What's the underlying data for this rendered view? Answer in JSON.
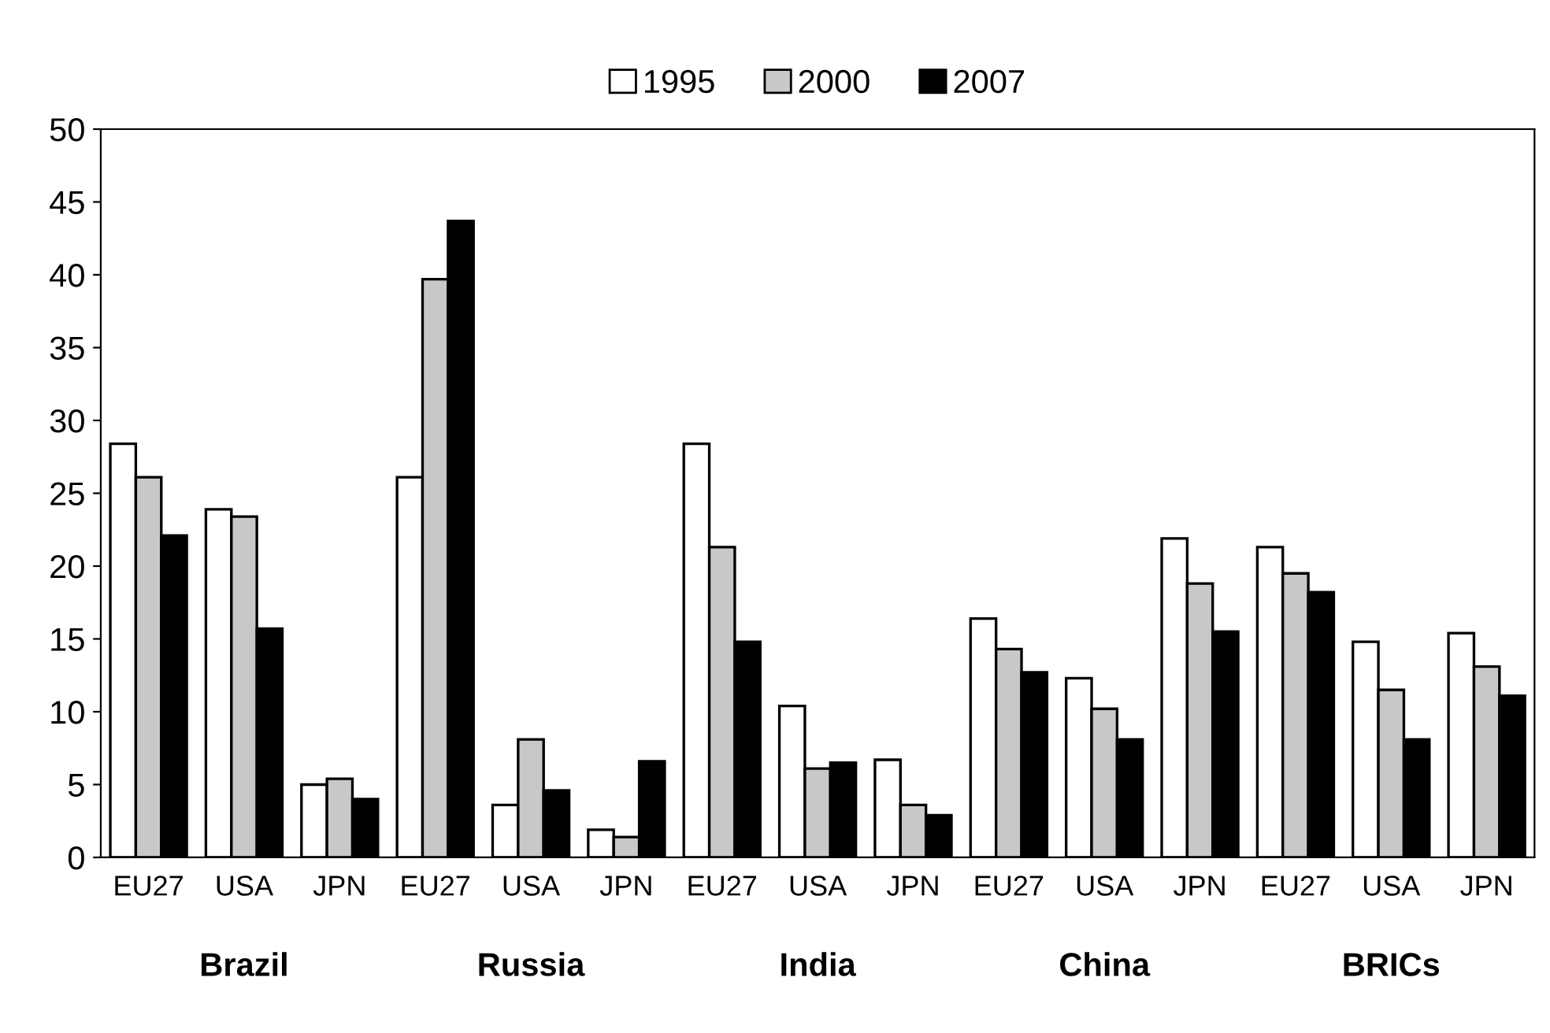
{
  "chart_data": {
    "type": "bar",
    "categories": [
      "EU27",
      "USA",
      "JPN",
      "EU27",
      "USA",
      "JPN",
      "EU27",
      "USA",
      "JPN",
      "EU27",
      "USA",
      "JPN",
      "EU27",
      "USA",
      "JPN"
    ],
    "series": [
      {
        "name": "1995",
        "color": "#ffffff",
        "values": [
          28.4,
          23.9,
          5.0,
          26.1,
          3.6,
          1.9,
          28.4,
          10.4,
          6.7,
          16.4,
          12.3,
          21.9,
          21.3,
          14.8,
          15.4
        ]
      },
      {
        "name": "2000",
        "color": "#c8c8c8",
        "values": [
          26.1,
          23.4,
          5.4,
          39.7,
          8.1,
          1.4,
          21.3,
          6.1,
          3.6,
          14.3,
          10.2,
          18.8,
          19.5,
          11.5,
          13.1
        ]
      },
      {
        "name": "2007",
        "color": "#000000",
        "values": [
          22.1,
          15.7,
          4.0,
          43.7,
          4.6,
          6.6,
          14.8,
          6.5,
          2.9,
          12.7,
          8.1,
          15.5,
          18.2,
          8.1,
          11.1
        ]
      }
    ],
    "annotations": [
      "Brazil",
      "Russia",
      "India",
      "China",
      "BRICs"
    ],
    "ylim": [
      0,
      50
    ],
    "yticks": [
      0,
      5,
      10,
      15,
      20,
      25,
      30,
      35,
      40,
      45,
      50
    ],
    "legend": "top",
    "grid": false
  }
}
